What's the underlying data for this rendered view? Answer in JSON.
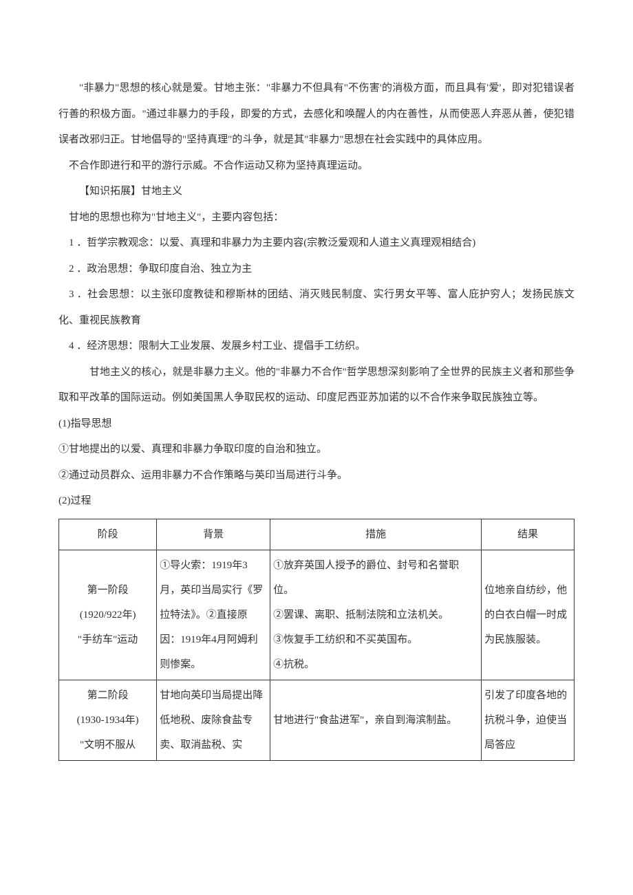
{
  "p1": "\"非暴力\"思想的核心就是爱。甘地主张：\"非暴力不但具有\"不伤害'的消极方面，而且具有'爱'，即对犯错误者行善的积极方面。\"通过非暴力的手段，即爱的方式，去感化和唤醒人的内在善性，从而使恶人弃恶从善，使犯错误者改邪归正。甘地倡导的\"坚持真理\"的斗争，就是其\"非暴力\"思想在社会实践中的具体应用。",
  "p2": "不合作即进行和平的游行示威。不合作运动又称为坚持真理运动。",
  "p3": "【知识拓展】甘地主义",
  "p4": "甘地的思想也称为\"甘地主义\"，主要内容包括：",
  "p5": "1 ．哲学宗教观念：以爱、真理和非暴力为主要内容(宗教泛爱观和人道主义真理观相结合)",
  "p6": "2 ．政治思想：争取印度自治、独立为主",
  "p7": "3 ．社会思想：以主张印度教徒和穆斯林的团结、消灭贱民制度、实行男女平等、富人庇护穷人；发扬民族文化、重视民族教育",
  "p8": "4 ．经济思想：限制大工业发展、发展乡村工业、提倡手工纺织。",
  "p9": "甘地主义的核心，就是非暴力主义。他的\"非暴力不合作\"哲学思想深刻影响了全世界的民族主义者和那些争取和平改革的国际运动。例如美国黑人争取民权的运动、印度尼西亚苏加诺的以不合作来争取民族独立等。",
  "p10": "(1)指导思想",
  "p11": "①甘地提出的以爱、真理和非暴力争取印度的自治和独立。",
  "p12": "②通过动员群众、运用非暴力不合作策略与英印当局进行斗争。",
  "p13": "(2)过程",
  "table": {
    "headers": {
      "h1": "阶段",
      "h2": "背景",
      "h3": "措施",
      "h4": "结果"
    },
    "row1": {
      "stage": "第一阶段\n(1920/922年)\n\"手纺车\"运动",
      "bg": "①导火索：1919年3月，英印当局实行《罗拉特法》。②直接原因：1919年4月阿姆利则惨案。",
      "measure": "①放弃英国人授予的爵位、封号和名誉职位。\n②罢课、离职、抵制法院和立法机关。\n③恢复手工纺织和不买英国布。\n④抗税。",
      "result": "位地亲自纺纱，他的白衣白帽一时成为民族服装。"
    },
    "row2": {
      "stage": "第二阶段\n(1930-1934年)\n\"文明不服从",
      "bg": "甘地向英印当局提出降低地税、废除食盐专卖、取消盐税、实",
      "measure": "甘地进行\"食盐进军\"，亲自到海滨制盐。",
      "result": "引发了印度各地的抗税斗争，迫使当局答应"
    }
  }
}
